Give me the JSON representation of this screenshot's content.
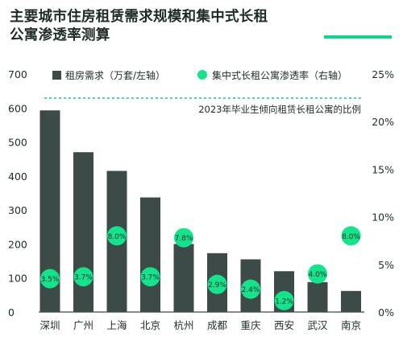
{
  "title_lines": [
    "主要城市住房租赁需求规模和集中式长租",
    "公寓渗透率测算"
  ],
  "colors": {
    "bar": "#3d4b48",
    "dot": "#14e38c",
    "dot_text": "#1e2b28",
    "text": "#1e2b28",
    "accent_rule": "#0fd48a"
  },
  "chart_data": {
    "type": "bar",
    "categories": [
      "深圳",
      "广州",
      "上海",
      "北京",
      "杭州",
      "成都",
      "重庆",
      "西安",
      "武汉",
      "南京"
    ],
    "series": [
      {
        "name": "租房需求（万套/左轴）",
        "type": "bar",
        "axis": "left",
        "values": [
          593,
          470,
          415,
          337,
          200,
          173,
          155,
          120,
          88,
          62
        ]
      },
      {
        "name": "集中式长租公寓渗透率（右轴）",
        "type": "scatter",
        "axis": "right",
        "values": [
          3.5,
          3.7,
          8.0,
          3.7,
          7.8,
          2.9,
          2.4,
          1.2,
          4.0,
          8.0
        ],
        "labels": [
          "3.5%",
          "3.7%",
          "8.0%",
          "3.7%",
          "7.8%",
          "2.9%",
          "2.4%",
          "1.2%",
          "4.0%",
          "8.0%"
        ]
      }
    ],
    "reference_line": {
      "label": "2023年毕业生倾向租赁长租公寓的比例",
      "style": "dashed"
    },
    "left_axis": {
      "ylim": [
        0,
        700
      ],
      "ticks": [
        0,
        100,
        200,
        300,
        400,
        500,
        600,
        700
      ]
    },
    "right_axis": {
      "ylim": [
        0,
        25
      ],
      "ticks": [
        0,
        5,
        10,
        15,
        20,
        25
      ],
      "tick_labels": [
        "0%",
        "5%",
        "10%",
        "15%",
        "20%",
        "25%"
      ]
    },
    "legend_position": "top",
    "grid": false
  }
}
